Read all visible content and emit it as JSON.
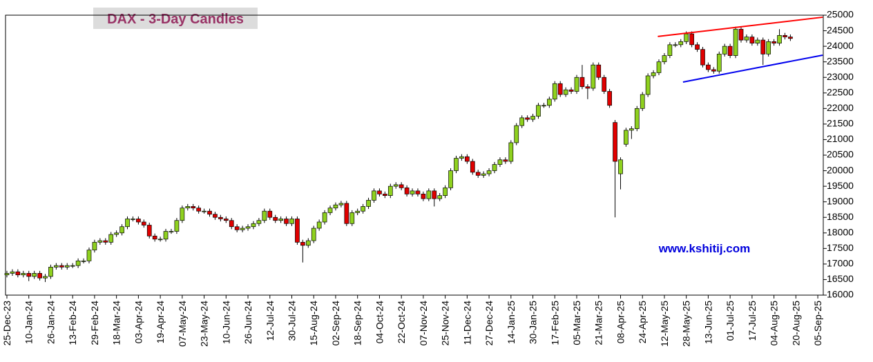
{
  "chart_data": {
    "type": "candlestick",
    "title": "DAX - 3-Day Candles",
    "annotation": "www.kshitij.com",
    "xlim": [
      -0.25,
      149
    ],
    "xticks": [
      {
        "value": 0,
        "label": "25-Dec-23"
      },
      {
        "value": 4,
        "label": "10-Jan-24"
      },
      {
        "value": 8,
        "label": "26-Jan-24"
      },
      {
        "value": 12,
        "label": "13-Feb-24"
      },
      {
        "value": 16,
        "label": "29-Feb-24"
      },
      {
        "value": 20,
        "label": "18-Mar-24"
      },
      {
        "value": 24,
        "label": "03-Apr-24"
      },
      {
        "value": 28,
        "label": "19-Apr-24"
      },
      {
        "value": 32,
        "label": "07-May-24"
      },
      {
        "value": 36,
        "label": "23-May-24"
      },
      {
        "value": 40,
        "label": "10-Jun-24"
      },
      {
        "value": 44,
        "label": "26-Jun-24"
      },
      {
        "value": 48,
        "label": "12-Jul-24"
      },
      {
        "value": 52,
        "label": "30-Jul-24"
      },
      {
        "value": 56,
        "label": "15-Aug-24"
      },
      {
        "value": 60,
        "label": "02-Sep-24"
      },
      {
        "value": 64,
        "label": "18-Sep-24"
      },
      {
        "value": 68,
        "label": "04-Oct-24"
      },
      {
        "value": 72,
        "label": "22-Oct-24"
      },
      {
        "value": 76,
        "label": "07-Nov-24"
      },
      {
        "value": 80,
        "label": "25-Nov-24"
      },
      {
        "value": 84,
        "label": "11-Dec-24"
      },
      {
        "value": 88,
        "label": "27-Dec-24"
      },
      {
        "value": 92,
        "label": "14-Jan-25"
      },
      {
        "value": 96,
        "label": "30-Jan-25"
      },
      {
        "value": 100,
        "label": "17-Feb-25"
      },
      {
        "value": 104,
        "label": "05-Mar-25"
      },
      {
        "value": 108,
        "label": "21-Mar-25"
      },
      {
        "value": 112,
        "label": "08-Apr-25"
      },
      {
        "value": 116,
        "label": "24-Apr-25"
      },
      {
        "value": 120,
        "label": "12-May-25"
      },
      {
        "value": 124,
        "label": "28-May-25"
      },
      {
        "value": 128,
        "label": "13-Jun-25"
      },
      {
        "value": 132,
        "label": "01-Jul-25"
      },
      {
        "value": 136,
        "label": "17-Jul-25"
      },
      {
        "value": 140,
        "label": "04-Aug-25"
      },
      {
        "value": 144,
        "label": "20-Aug-25"
      },
      {
        "value": 148,
        "label": "05-Sep-25"
      }
    ],
    "ylim": [
      16000,
      25000
    ],
    "yticks": [
      16000,
      16500,
      17000,
      17500,
      18000,
      18500,
      19000,
      19500,
      20000,
      20500,
      21000,
      21500,
      22000,
      22500,
      23000,
      23500,
      24000,
      24500,
      25000
    ],
    "up_color": "#8fd11f",
    "down_color": "#e00000",
    "open": [
      16650,
      16700,
      16750,
      16650,
      16700,
      16600,
      16700,
      16550,
      16600,
      16900,
      16950,
      16900,
      16950,
      16950,
      17100,
      17100,
      17450,
      17700,
      17750,
      17700,
      17950,
      18000,
      18200,
      18450,
      18450,
      18350,
      18250,
      17900,
      17800,
      17800,
      18050,
      18050,
      18400,
      18800,
      18850,
      18800,
      18700,
      18700,
      18600,
      18500,
      18450,
      18400,
      18200,
      18100,
      18150,
      18200,
      18300,
      18400,
      18700,
      18500,
      18400,
      18450,
      18300,
      18450,
      17700,
      17600,
      17750,
      18150,
      18350,
      18650,
      18800,
      18900,
      18950,
      18300,
      18650,
      18700,
      18850,
      19050,
      19350,
      19250,
      19200,
      19500,
      19550,
      19450,
      19250,
      19350,
      19250,
      19100,
      19350,
      19100,
      19200,
      19450,
      20000,
      20400,
      20450,
      20300,
      19950,
      19850,
      19900,
      20000,
      20200,
      20350,
      20300,
      20900,
      21450,
      21700,
      21650,
      21750,
      22100,
      22100,
      22300,
      22800,
      22450,
      22600,
      22550,
      23000,
      22700,
      22650,
      23400,
      23000,
      22550,
      21550,
      19900,
      20850,
      21300,
      21350,
      22000,
      22450,
      23050,
      23150,
      23500,
      23700,
      24050,
      24050,
      24150,
      24400,
      24050,
      23900,
      23400,
      23250,
      23200,
      23750,
      24000,
      23700,
      24550,
      24200,
      24300,
      24100,
      24200,
      23750,
      24150,
      24100,
      24350,
      24300
    ],
    "high": [
      16780,
      16830,
      16830,
      16780,
      16780,
      16780,
      16780,
      16680,
      16980,
      17030,
      17030,
      17030,
      17030,
      17180,
      17180,
      17530,
      17780,
      17830,
      17830,
      18030,
      18080,
      18280,
      18530,
      18530,
      18530,
      18430,
      18330,
      17980,
      17880,
      18130,
      18130,
      18480,
      18880,
      18930,
      18930,
      18880,
      18780,
      18780,
      18680,
      18580,
      18530,
      18480,
      18280,
      18230,
      18280,
      18380,
      18480,
      18780,
      18780,
      18580,
      18530,
      18530,
      18530,
      18530,
      17780,
      17830,
      18230,
      18430,
      18730,
      18880,
      18980,
      19030,
      19030,
      18730,
      18780,
      18930,
      19130,
      19430,
      19430,
      19330,
      19580,
      19630,
      19630,
      19530,
      19430,
      19430,
      19330,
      19430,
      19430,
      19280,
      19530,
      20080,
      20480,
      20530,
      20530,
      20380,
      20030,
      19980,
      20080,
      20280,
      20430,
      20430,
      20980,
      21530,
      21780,
      21780,
      21830,
      22180,
      22180,
      22380,
      22880,
      22880,
      22680,
      22680,
      23080,
      23400,
      22780,
      23480,
      23480,
      23080,
      22630,
      21630,
      20430,
      21380,
      21430,
      22080,
      22530,
      23130,
      23230,
      23580,
      23780,
      24130,
      24130,
      24230,
      24480,
      24480,
      24130,
      23980,
      23480,
      23330,
      23830,
      24080,
      24080,
      24630,
      24630,
      24380,
      24380,
      24280,
      24280,
      24230,
      24230,
      24550,
      24430,
      24380
    ],
    "low": [
      16570,
      16620,
      16570,
      16570,
      16450,
      16520,
      16470,
      16420,
      16520,
      16820,
      16820,
      16820,
      16870,
      16870,
      17020,
      17020,
      17370,
      17620,
      17620,
      17620,
      17870,
      17920,
      18120,
      18370,
      18270,
      18170,
      17820,
      17720,
      17720,
      17720,
      17970,
      17970,
      18320,
      18720,
      18720,
      18620,
      18620,
      18520,
      18420,
      18370,
      18320,
      18120,
      18020,
      18020,
      18070,
      18120,
      18220,
      18320,
      18420,
      18320,
      18320,
      18220,
      18220,
      17620,
      17050,
      17520,
      17670,
      18070,
      18270,
      18570,
      18720,
      18820,
      18220,
      18220,
      18570,
      18620,
      18770,
      18970,
      19170,
      19120,
      19120,
      19420,
      19370,
      19170,
      19170,
      19170,
      19020,
      19020,
      18850,
      19020,
      19120,
      19370,
      19920,
      20320,
      20220,
      19870,
      19770,
      19770,
      19820,
      19920,
      20120,
      20220,
      20220,
      20820,
      21370,
      21570,
      21570,
      21670,
      22020,
      22020,
      22220,
      22370,
      22370,
      22470,
      22470,
      22620,
      22300,
      22570,
      22920,
      22470,
      22020,
      18500,
      19400,
      20770,
      21020,
      21270,
      21920,
      22370,
      22970,
      23070,
      23420,
      23620,
      23970,
      23970,
      24070,
      23970,
      23820,
      23320,
      23170,
      23120,
      23120,
      23670,
      23620,
      23620,
      24120,
      24120,
      24020,
      24020,
      23400,
      23670,
      24020,
      24020,
      24220,
      24170
    ],
    "close": [
      16700,
      16750,
      16650,
      16700,
      16600,
      16700,
      16550,
      16600,
      16900,
      16950,
      16900,
      16950,
      16950,
      17100,
      17100,
      17450,
      17700,
      17750,
      17700,
      17950,
      18000,
      18200,
      18450,
      18450,
      18350,
      18250,
      17900,
      17800,
      17800,
      18050,
      18050,
      18400,
      18800,
      18850,
      18800,
      18700,
      18700,
      18600,
      18500,
      18450,
      18400,
      18200,
      18100,
      18150,
      18200,
      18300,
      18400,
      18700,
      18500,
      18400,
      18450,
      18300,
      18450,
      17700,
      17600,
      17750,
      18150,
      18350,
      18650,
      18800,
      18900,
      18950,
      18300,
      18650,
      18700,
      18850,
      19050,
      19350,
      19250,
      19200,
      19500,
      19550,
      19450,
      19250,
      19350,
      19250,
      19100,
      19350,
      19100,
      19200,
      19450,
      20000,
      20400,
      20450,
      20300,
      19950,
      19850,
      19900,
      20000,
      20200,
      20350,
      20300,
      20900,
      21450,
      21700,
      21650,
      21750,
      22100,
      22100,
      22300,
      22800,
      22450,
      22600,
      22550,
      23000,
      22700,
      22650,
      23400,
      23000,
      22550,
      22100,
      20300,
      20350,
      21300,
      21350,
      22000,
      22450,
      23050,
      23150,
      23500,
      23700,
      24050,
      24050,
      24150,
      24400,
      24050,
      23900,
      23400,
      23250,
      23200,
      23750,
      24000,
      23700,
      24550,
      24200,
      24300,
      24100,
      24200,
      23750,
      24150,
      24100,
      24350,
      24300,
      24250
    ],
    "trend_lines": [
      {
        "color": "#ff0000",
        "x": [
          118.8,
          148.9
        ],
        "y": [
          24315,
          24935
        ]
      },
      {
        "color": "#0000ee",
        "x": [
          123.4,
          148.9
        ],
        "y": [
          22850,
          23715
        ]
      }
    ]
  }
}
